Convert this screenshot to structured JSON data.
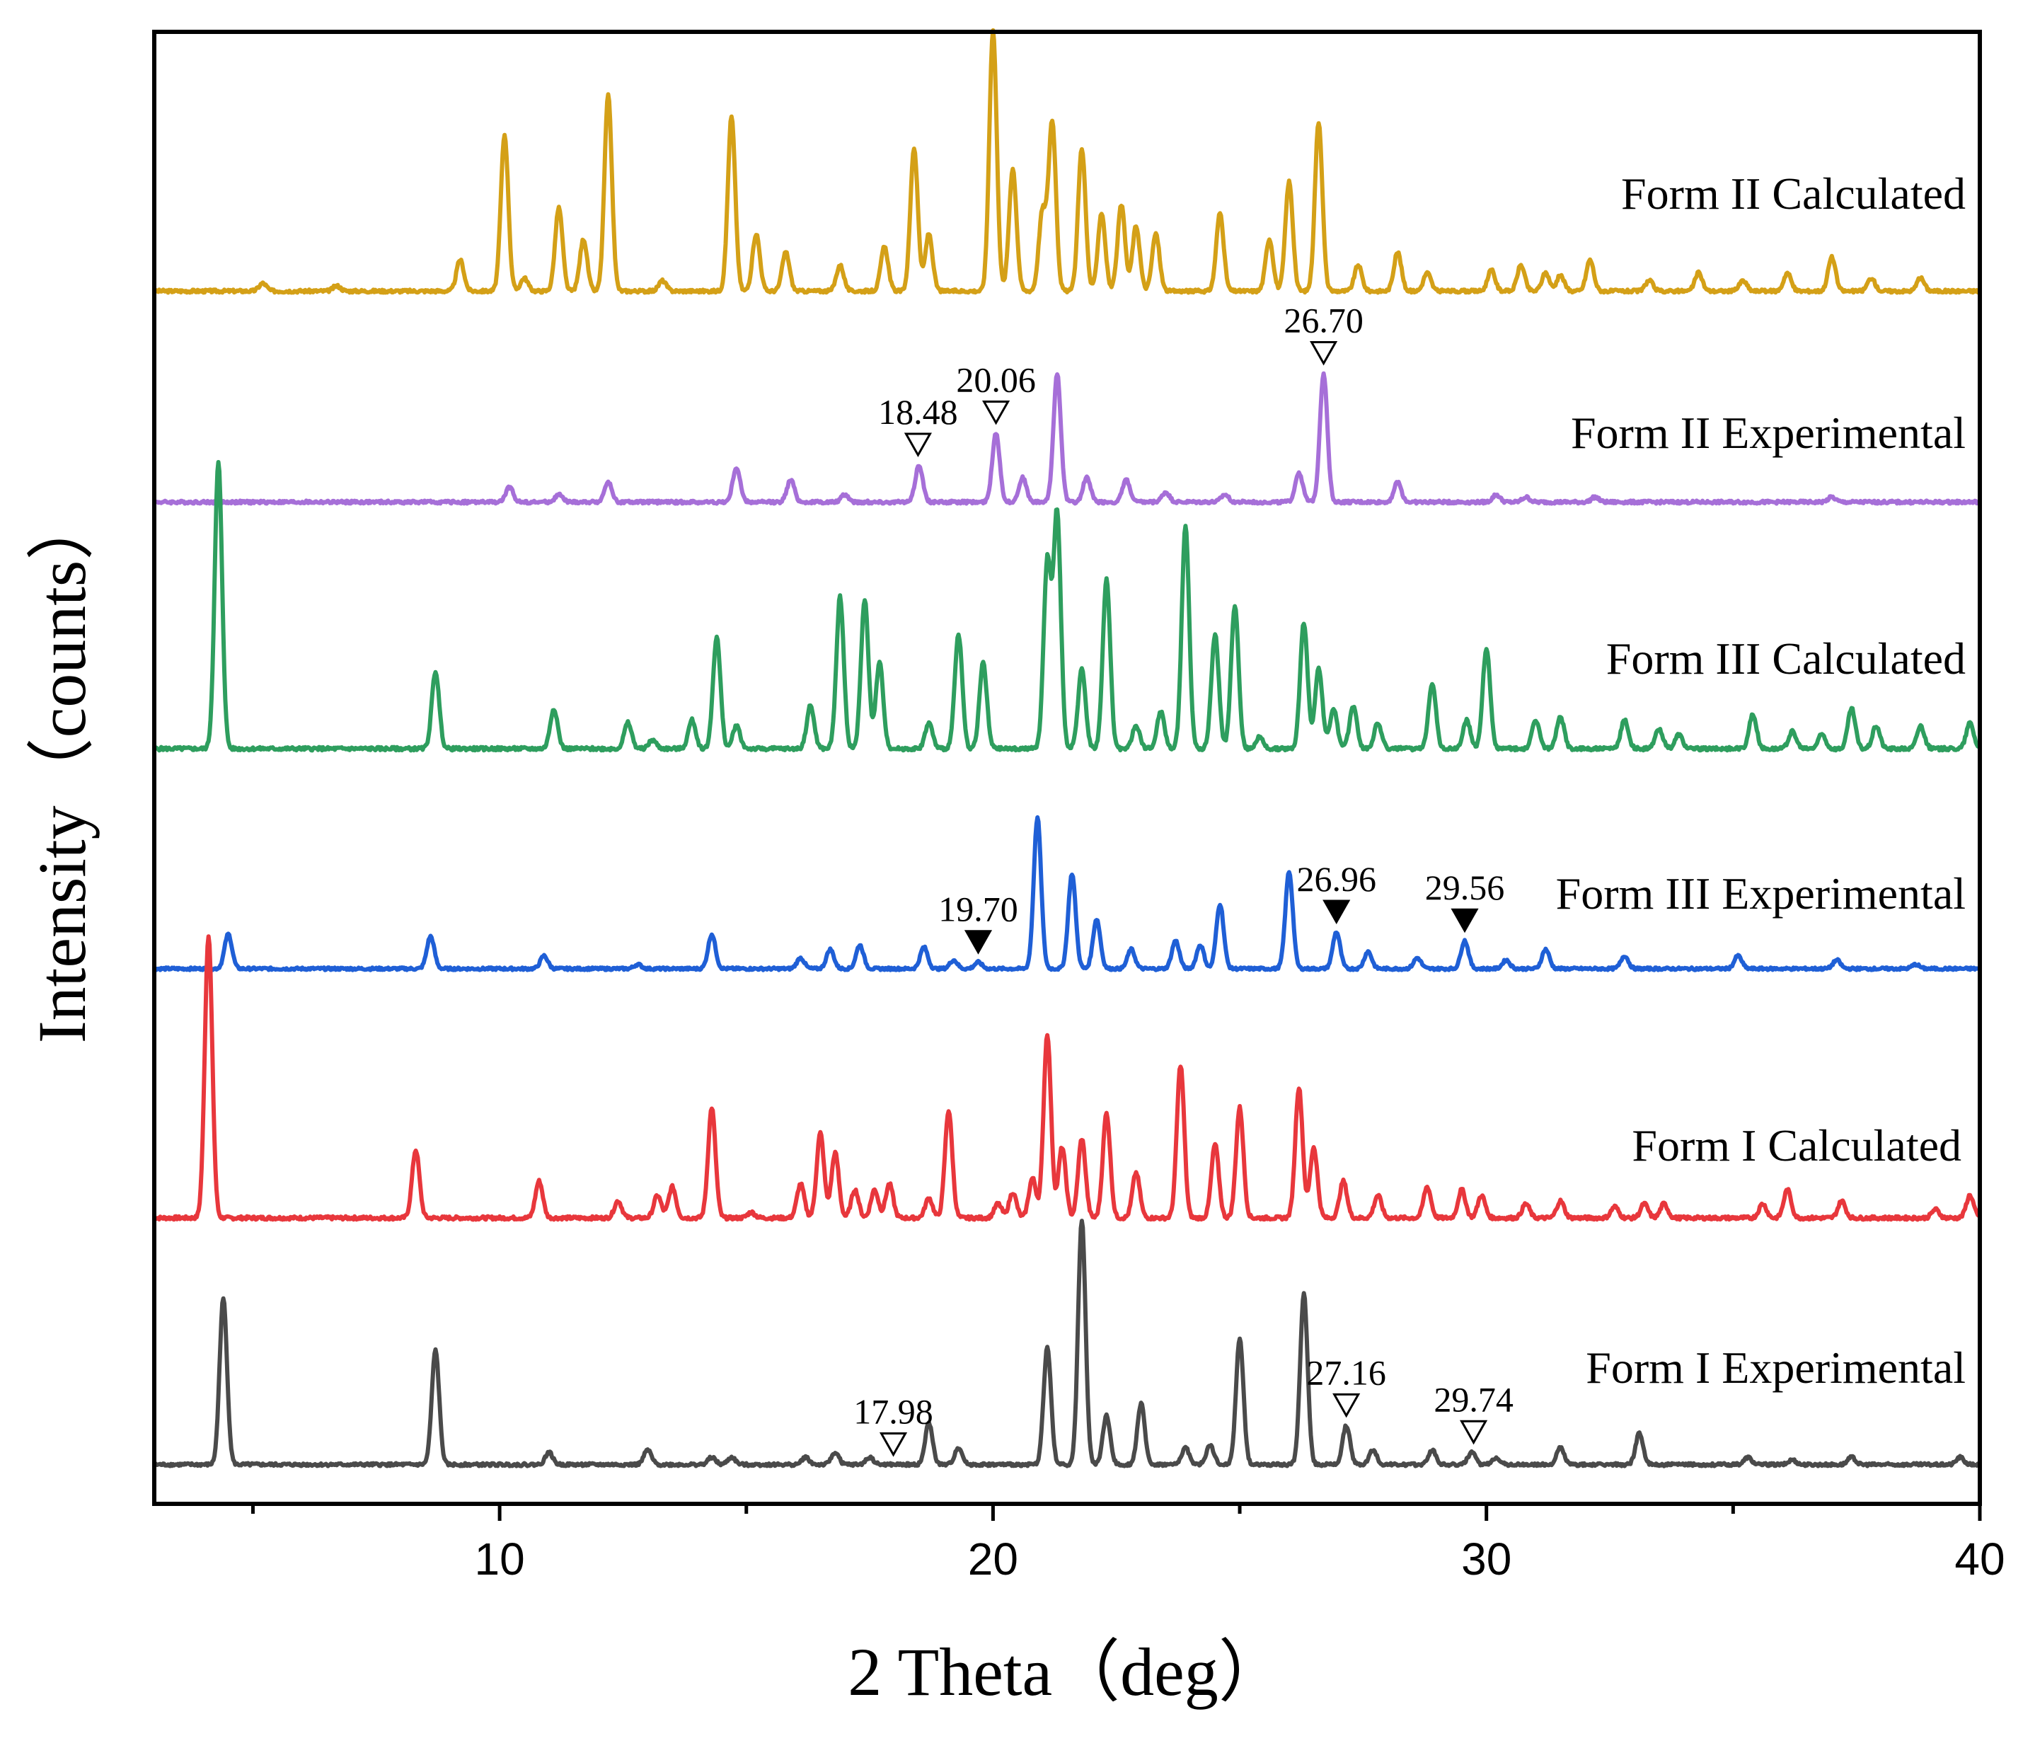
{
  "chart_data": {
    "type": "line",
    "title": "",
    "xlabel": "2 Theta（deg）",
    "ylabel": "Intensity（counts）",
    "xlim": [
      3,
      40
    ],
    "xticks": [
      10,
      20,
      30,
      40
    ],
    "xtick_labels": [
      "10",
      "20",
      "30",
      "40"
    ],
    "grid": false,
    "series": [
      {
        "name": "Form II Calculated",
        "color": "#D4A017",
        "baseline": 1,
        "peaks": [
          [
            5.2,
            3
          ],
          [
            6.7,
            2
          ],
          [
            9.2,
            12
          ],
          [
            10.1,
            60
          ],
          [
            10.5,
            5
          ],
          [
            11.2,
            32
          ],
          [
            11.7,
            20
          ],
          [
            12.2,
            75
          ],
          [
            13.3,
            4
          ],
          [
            14.7,
            67
          ],
          [
            15.2,
            22
          ],
          [
            15.8,
            15
          ],
          [
            16.9,
            10
          ],
          [
            17.8,
            17
          ],
          [
            18.4,
            55
          ],
          [
            18.7,
            22
          ],
          [
            20.0,
            100
          ],
          [
            20.4,
            47
          ],
          [
            21.0,
            30
          ],
          [
            21.2,
            65
          ],
          [
            21.8,
            55
          ],
          [
            22.2,
            30
          ],
          [
            22.6,
            33
          ],
          [
            22.9,
            25
          ],
          [
            23.3,
            22
          ],
          [
            24.6,
            30
          ],
          [
            25.6,
            20
          ],
          [
            26.0,
            42
          ],
          [
            26.6,
            65
          ],
          [
            27.4,
            10
          ],
          [
            28.2,
            15
          ],
          [
            28.8,
            7
          ],
          [
            30.1,
            8
          ],
          [
            30.7,
            10
          ],
          [
            31.2,
            7
          ],
          [
            31.5,
            6
          ],
          [
            32.1,
            12
          ],
          [
            33.3,
            4
          ],
          [
            34.3,
            7
          ],
          [
            35.2,
            4
          ],
          [
            36.1,
            7
          ],
          [
            37.0,
            13
          ],
          [
            37.8,
            5
          ],
          [
            38.8,
            5
          ]
        ]
      },
      {
        "name": "Form II Experimental",
        "color": "#A66FD8",
        "baseline": 1,
        "peaks": [
          [
            10.2,
            6
          ],
          [
            11.2,
            3
          ],
          [
            12.2,
            8
          ],
          [
            14.8,
            14
          ],
          [
            15.9,
            9
          ],
          [
            17.0,
            3
          ],
          [
            18.5,
            15
          ],
          [
            20.06,
            28
          ],
          [
            20.6,
            10
          ],
          [
            21.3,
            52
          ],
          [
            21.9,
            10
          ],
          [
            22.7,
            9
          ],
          [
            23.5,
            4
          ],
          [
            24.7,
            3
          ],
          [
            26.2,
            12
          ],
          [
            26.7,
            52
          ],
          [
            28.2,
            8
          ],
          [
            30.2,
            3
          ],
          [
            30.8,
            2
          ],
          [
            32.2,
            2
          ],
          [
            37.0,
            2
          ]
        ]
      },
      {
        "name": "Form III Calculated",
        "color": "#2E9E5E",
        "baseline": 1,
        "peaks": [
          [
            4.3,
            100
          ],
          [
            8.7,
            27
          ],
          [
            11.1,
            14
          ],
          [
            12.6,
            9
          ],
          [
            13.1,
            3
          ],
          [
            13.9,
            10
          ],
          [
            14.4,
            39
          ],
          [
            14.8,
            8
          ],
          [
            16.3,
            15
          ],
          [
            16.9,
            53
          ],
          [
            17.4,
            52
          ],
          [
            17.7,
            30
          ],
          [
            18.7,
            9
          ],
          [
            19.3,
            40
          ],
          [
            19.8,
            30
          ],
          [
            21.1,
            65
          ],
          [
            21.3,
            82
          ],
          [
            21.8,
            28
          ],
          [
            22.3,
            59
          ],
          [
            22.9,
            8
          ],
          [
            23.4,
            13
          ],
          [
            23.9,
            78
          ],
          [
            24.5,
            40
          ],
          [
            24.9,
            50
          ],
          [
            25.4,
            4
          ],
          [
            26.3,
            44
          ],
          [
            26.6,
            28
          ],
          [
            26.9,
            14
          ],
          [
            27.3,
            15
          ],
          [
            27.8,
            9
          ],
          [
            28.9,
            23
          ],
          [
            29.6,
            10
          ],
          [
            30.0,
            35
          ],
          [
            31.0,
            10
          ],
          [
            31.5,
            11
          ],
          [
            32.8,
            10
          ],
          [
            33.5,
            7
          ],
          [
            33.9,
            5
          ],
          [
            35.4,
            12
          ],
          [
            36.2,
            6
          ],
          [
            36.8,
            5
          ],
          [
            37.4,
            14
          ],
          [
            37.9,
            8
          ],
          [
            38.8,
            8
          ],
          [
            39.8,
            9
          ]
        ]
      },
      {
        "name": "Form III Experimental",
        "color": "#1F5FD6",
        "baseline": 3,
        "peaks": [
          [
            4.5,
            16
          ],
          [
            8.6,
            15
          ],
          [
            10.9,
            6
          ],
          [
            12.8,
            2
          ],
          [
            14.3,
            16
          ],
          [
            16.1,
            5
          ],
          [
            16.7,
            9
          ],
          [
            17.3,
            11
          ],
          [
            18.6,
            10
          ],
          [
            19.2,
            4
          ],
          [
            19.7,
            3
          ],
          [
            20.9,
            70
          ],
          [
            21.6,
            44
          ],
          [
            22.1,
            23
          ],
          [
            22.8,
            9
          ],
          [
            23.7,
            13
          ],
          [
            24.2,
            11
          ],
          [
            24.6,
            30
          ],
          [
            26.0,
            45
          ],
          [
            26.96,
            17
          ],
          [
            27.6,
            8
          ],
          [
            28.6,
            5
          ],
          [
            29.56,
            13
          ],
          [
            30.4,
            4
          ],
          [
            31.2,
            9
          ],
          [
            32.8,
            6
          ],
          [
            35.1,
            6
          ],
          [
            37.1,
            4
          ],
          [
            38.7,
            2
          ]
        ]
      },
      {
        "name": "Form I Calculated",
        "color": "#E8373C",
        "baseline": 1,
        "peaks": [
          [
            4.1,
            100
          ],
          [
            8.3,
            24
          ],
          [
            10.8,
            13
          ],
          [
            12.4,
            6
          ],
          [
            13.2,
            8
          ],
          [
            13.5,
            11
          ],
          [
            14.3,
            39
          ],
          [
            15.1,
            2
          ],
          [
            16.1,
            12
          ],
          [
            16.5,
            30
          ],
          [
            16.8,
            23
          ],
          [
            17.2,
            10
          ],
          [
            17.6,
            10
          ],
          [
            17.9,
            12
          ],
          [
            18.7,
            7
          ],
          [
            19.1,
            38
          ],
          [
            20.1,
            5
          ],
          [
            20.4,
            9
          ],
          [
            20.8,
            14
          ],
          [
            21.1,
            65
          ],
          [
            21.4,
            25
          ],
          [
            21.8,
            28
          ],
          [
            22.3,
            37
          ],
          [
            22.9,
            16
          ],
          [
            23.8,
            54
          ],
          [
            24.5,
            26
          ],
          [
            25.0,
            39
          ],
          [
            26.2,
            46
          ],
          [
            26.5,
            25
          ],
          [
            27.1,
            13
          ],
          [
            27.8,
            8
          ],
          [
            28.8,
            11
          ],
          [
            29.5,
            10
          ],
          [
            29.9,
            8
          ],
          [
            30.8,
            5
          ],
          [
            31.5,
            6
          ],
          [
            32.6,
            4
          ],
          [
            33.2,
            5
          ],
          [
            33.6,
            5
          ],
          [
            35.6,
            5
          ],
          [
            36.1,
            10
          ],
          [
            37.2,
            6
          ],
          [
            39.1,
            3
          ],
          [
            39.8,
            8
          ]
        ]
      },
      {
        "name": "Form I Experimental",
        "color": "#4A4A4A",
        "baseline": 1,
        "peaks": [
          [
            4.4,
            68
          ],
          [
            8.7,
            47
          ],
          [
            11.0,
            5
          ],
          [
            13.0,
            6
          ],
          [
            14.3,
            3
          ],
          [
            14.7,
            3
          ],
          [
            16.2,
            3
          ],
          [
            16.8,
            5
          ],
          [
            17.5,
            3
          ],
          [
            18.7,
            17
          ],
          [
            19.3,
            7
          ],
          [
            21.1,
            48
          ],
          [
            21.8,
            100
          ],
          [
            22.3,
            20
          ],
          [
            23.0,
            25
          ],
          [
            23.9,
            7
          ],
          [
            24.4,
            8
          ],
          [
            25.0,
            52
          ],
          [
            26.3,
            70
          ],
          [
            27.16,
            16
          ],
          [
            27.7,
            6
          ],
          [
            28.9,
            6
          ],
          [
            29.7,
            5
          ],
          [
            30.2,
            3
          ],
          [
            31.5,
            7
          ],
          [
            33.1,
            13
          ],
          [
            35.3,
            3
          ],
          [
            36.2,
            2
          ],
          [
            37.4,
            3
          ],
          [
            39.6,
            3
          ]
        ]
      }
    ],
    "annotations": [
      {
        "series": "Form II Experimental",
        "label": "18.48",
        "x": 18.48,
        "marker": "open-triangle-down"
      },
      {
        "series": "Form II Experimental",
        "label": "20.06",
        "x": 20.06,
        "marker": "open-triangle-down"
      },
      {
        "series": "Form II Experimental",
        "label": "26.70",
        "x": 26.7,
        "marker": "open-triangle-down"
      },
      {
        "series": "Form III Experimental",
        "label": "19.70",
        "x": 19.7,
        "marker": "filled-triangle-down"
      },
      {
        "series": "Form III Experimental",
        "label": "26.96",
        "x": 26.96,
        "marker": "filled-triangle-down"
      },
      {
        "series": "Form III Experimental",
        "label": "29.56",
        "x": 29.56,
        "marker": "filled-triangle-down"
      },
      {
        "series": "Form I Experimental",
        "label": "17.98",
        "x": 17.98,
        "marker": "open-triangle-down"
      },
      {
        "series": "Form I Experimental",
        "label": "27.16",
        "x": 27.16,
        "marker": "open-triangle-down"
      },
      {
        "series": "Form I Experimental",
        "label": "29.74",
        "x": 29.74,
        "marker": "open-triangle-down"
      }
    ]
  }
}
